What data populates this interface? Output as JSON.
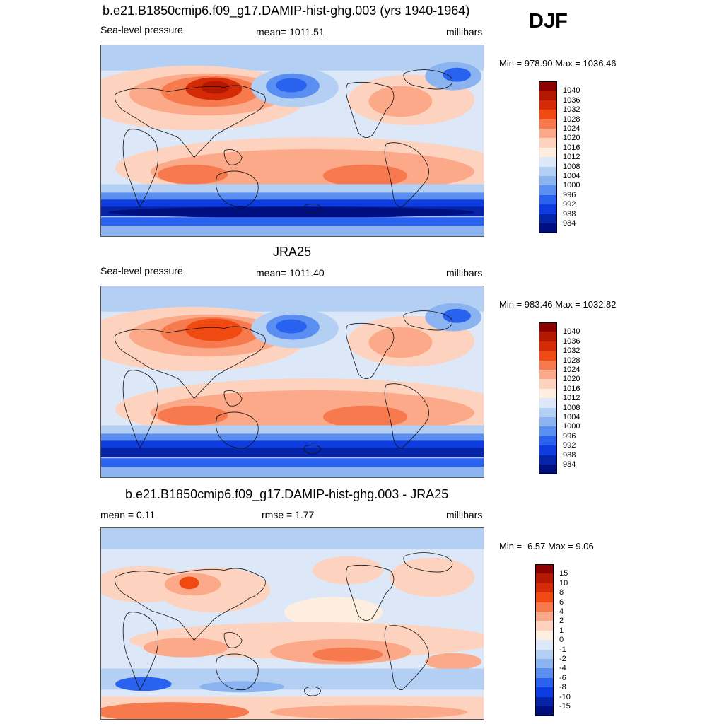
{
  "season": "DJF",
  "panels": [
    {
      "title": "b.e21.B1850cmip6.f09_g17.DAMIP-hist-ghg.003 (yrs 1940-1964)",
      "left": "Sea-level pressure",
      "center": "mean= 1011.51",
      "right": "millibars",
      "minmax": "Min = 978.90 Max = 1036.46",
      "variant": "model"
    },
    {
      "title": "JRA25",
      "left": "Sea-level pressure",
      "center": "mean= 1011.40",
      "right": "millibars",
      "minmax": "Min = 983.46 Max = 1032.82",
      "variant": "obs"
    },
    {
      "title": "b.e21.B1850cmip6.f09_g17.DAMIP-hist-ghg.003 - JRA25",
      "left": "mean =   0.11",
      "center": "rmse =   1.77",
      "right": "millibars",
      "minmax": "Min =  -6.57 Max =   9.06",
      "variant": "diff"
    }
  ],
  "legend_slp": {
    "labels": [
      "1040",
      "1036",
      "1032",
      "1028",
      "1024",
      "1020",
      "1016",
      "1012",
      "1008",
      "1004",
      "1000",
      "996",
      "992",
      "988",
      "984"
    ],
    "colors": [
      "#8b0000",
      "#b41800",
      "#d42a06",
      "#f04a12",
      "#f67a4e",
      "#fba988",
      "#fdd3bf",
      "#fdeee0",
      "#dce8f8",
      "#b4cff4",
      "#8ab3f0",
      "#5a8ef0",
      "#2a62f0",
      "#0d3ce0",
      "#0624a8",
      "#000f80"
    ]
  },
  "legend_diff": {
    "labels": [
      "15",
      "10",
      "8",
      "6",
      "4",
      "2",
      "1",
      "0",
      "-1",
      "-2",
      "-4",
      "-6",
      "-8",
      "-10",
      "-15"
    ],
    "colors": [
      "#8b0000",
      "#b41800",
      "#d42a06",
      "#f04a12",
      "#f67a4e",
      "#fba988",
      "#fdd3bf",
      "#fdeee0",
      "#dce8f8",
      "#b4cff4",
      "#8ab3f0",
      "#5a8ef0",
      "#2a62f0",
      "#0d3ce0",
      "#0624a8",
      "#000f80"
    ]
  }
}
